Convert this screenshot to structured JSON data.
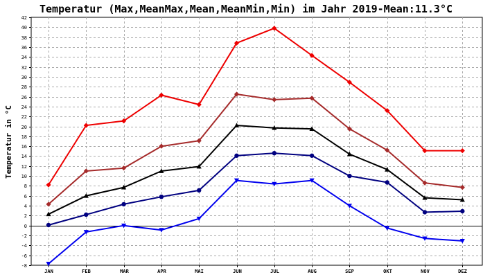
{
  "chart_data": {
    "type": "line",
    "title": "Temperatur (Max,MeanMax,Mean,MeanMin,Min) im Jahr 2019-Mean:11.3°C",
    "ylabel": "Temperatur in °C",
    "xlabel": "",
    "categories": [
      "JAN",
      "FEB",
      "MAR",
      "APR",
      "MAI",
      "JUN",
      "JUL",
      "AUG",
      "SEP",
      "OKT",
      "NOV",
      "DEZ"
    ],
    "ylim": [
      -8,
      42
    ],
    "yticks": [
      -8,
      -6,
      -4,
      -2,
      0,
      2,
      4,
      6,
      8,
      10,
      12,
      14,
      16,
      18,
      20,
      22,
      24,
      26,
      28,
      30,
      32,
      34,
      36,
      38,
      40,
      42
    ],
    "grid": true,
    "series": [
      {
        "id": "max",
        "color": "#ee0000",
        "marker": "diamond",
        "values": [
          8.2,
          20.2,
          21.1,
          26.3,
          24.4,
          36.8,
          39.8,
          34.3,
          28.9,
          23.2,
          15.1,
          15.1
        ]
      },
      {
        "id": "meanmax",
        "color": "#a52a2a",
        "marker": "diamond",
        "values": [
          4.3,
          11.0,
          11.6,
          16.0,
          17.1,
          26.5,
          25.4,
          25.7,
          19.5,
          15.2,
          8.6,
          7.7
        ]
      },
      {
        "id": "mean",
        "color": "#000000",
        "marker": "triangle-up",
        "values": [
          2.3,
          6.0,
          7.7,
          11.0,
          11.9,
          20.2,
          19.7,
          19.5,
          14.4,
          11.3,
          5.6,
          5.2
        ]
      },
      {
        "id": "meanmin",
        "color": "#000080",
        "marker": "circle",
        "values": [
          0.1,
          2.2,
          4.3,
          5.8,
          7.1,
          14.1,
          14.6,
          14.1,
          10.0,
          8.7,
          2.7,
          2.9
        ]
      },
      {
        "id": "min",
        "color": "#0000ee",
        "marker": "triangle-down",
        "values": [
          -7.7,
          -1.3,
          0.0,
          -0.9,
          1.4,
          9.1,
          8.4,
          9.1,
          4.0,
          -0.5,
          -2.6,
          -3.1
        ]
      }
    ]
  }
}
